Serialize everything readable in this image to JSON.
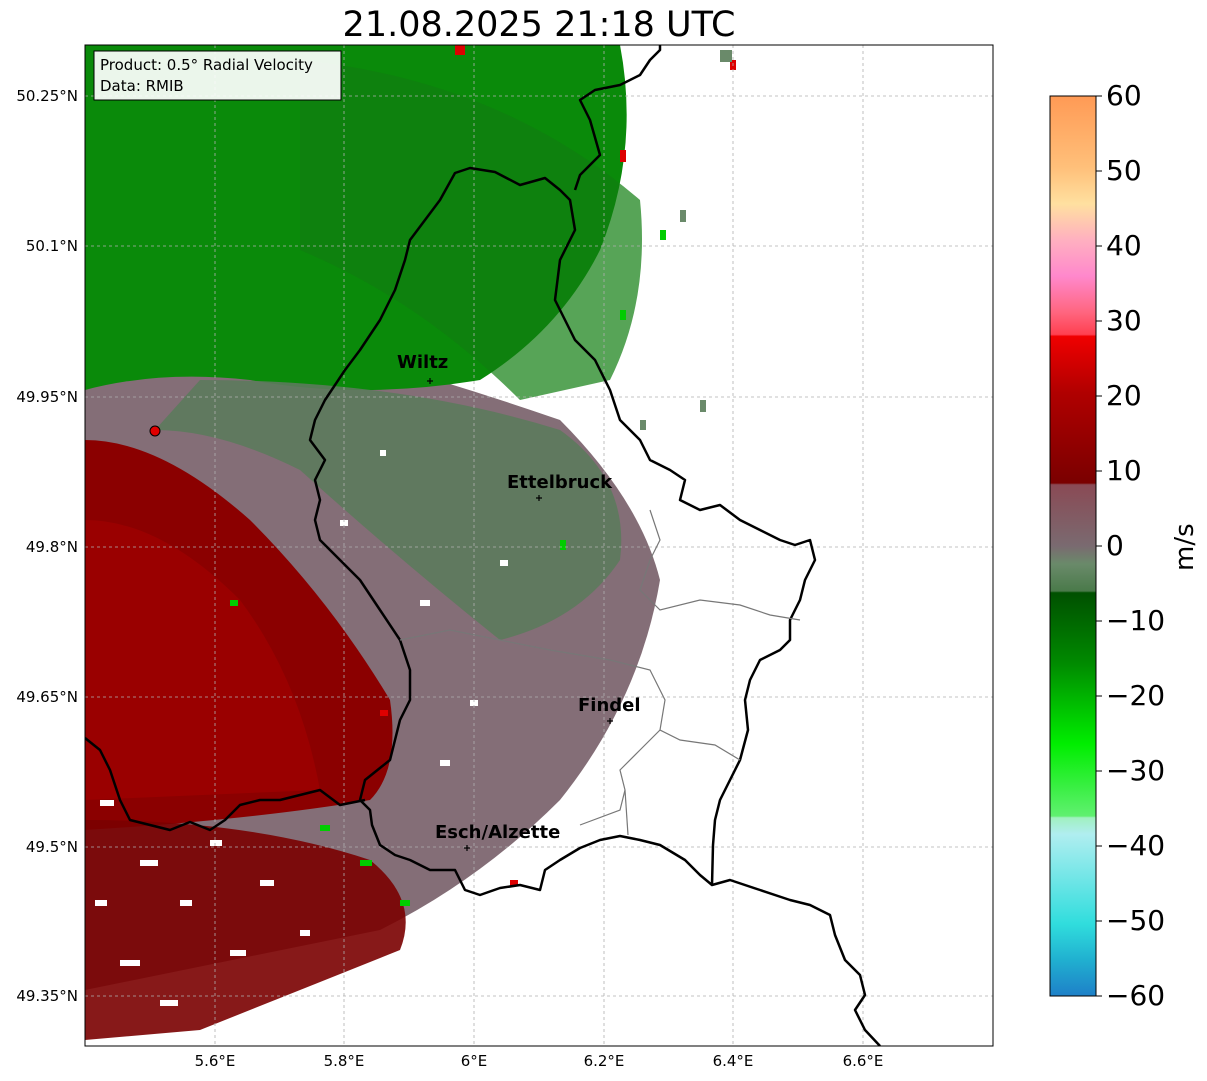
{
  "title": "21.08.2025 21:18 UTC",
  "info_box": {
    "product": "Product: 0.5° Radial Velocity",
    "data_source": "Data: RMIB"
  },
  "axes": {
    "lat_ticks": [
      "50.25°N",
      "50.1°N",
      "49.95°N",
      "49.8°N",
      "49.65°N",
      "49.5°N",
      "49.35°N"
    ],
    "lon_ticks": [
      "5.6°E",
      "5.8°E",
      "6°E",
      "6.2°E",
      "6.4°E",
      "6.6°E"
    ]
  },
  "cities": [
    "Wiltz",
    "Ettelbruck",
    "Findel",
    "Esch/Alzette"
  ],
  "colorbar": {
    "unit_label": "m/s",
    "ticks": [
      "60",
      "50",
      "40",
      "30",
      "20",
      "10",
      "0",
      "−10",
      "−20",
      "−30",
      "−40",
      "−50",
      "−60"
    ]
  },
  "colors": {
    "inbound_green": "#0a8a0a",
    "outbound_red": "#8b0000",
    "near_zero_gray": "#7a6a70",
    "radar_site": "#e00000",
    "border": "#000000"
  }
}
